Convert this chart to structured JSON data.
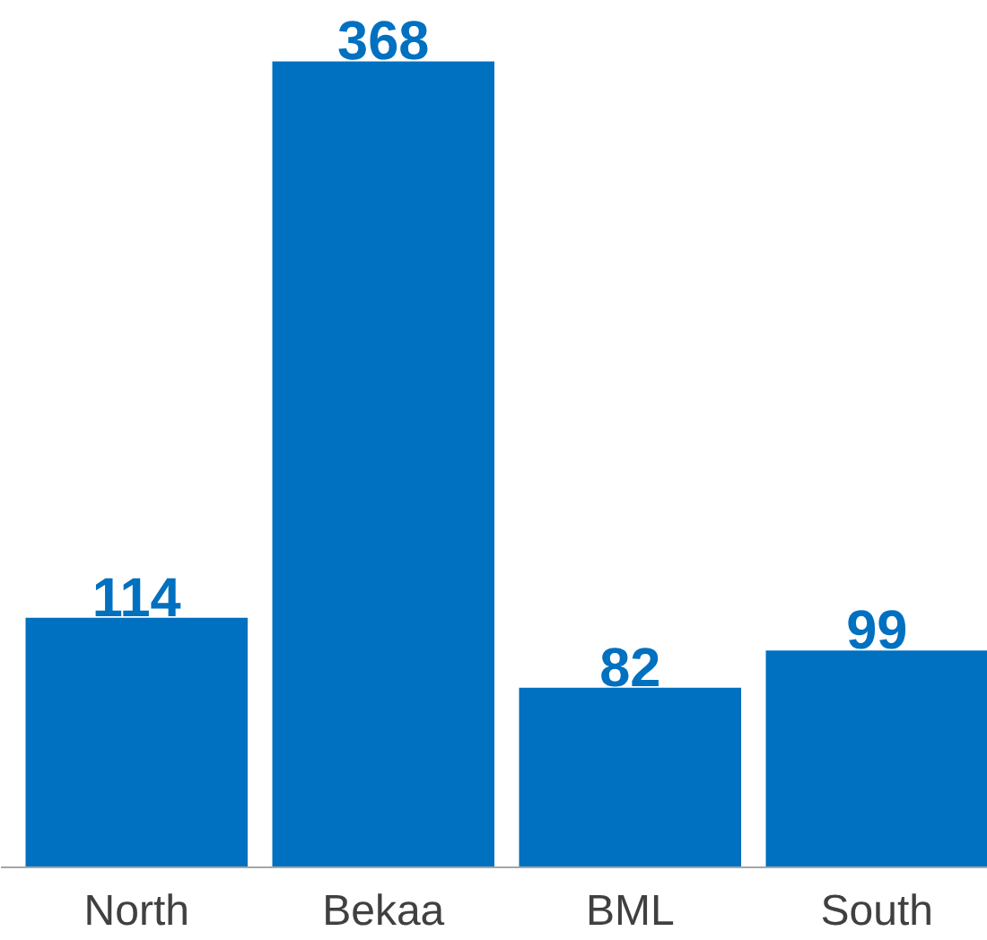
{
  "chart_data": {
    "type": "bar",
    "categories": [
      "North",
      "Bekaa",
      "BML",
      "South"
    ],
    "values": [
      114,
      368,
      82,
      99
    ],
    "color": "#0070c0",
    "data_labels": true
  }
}
